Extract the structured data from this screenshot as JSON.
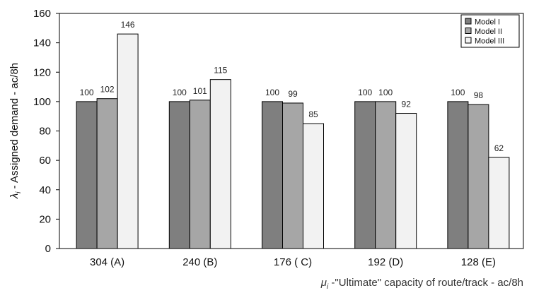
{
  "chart_data": {
    "type": "bar",
    "categories": [
      "304 (A)",
      "240 (B)",
      "176 ( C)",
      "192 (D)",
      "128 (E)"
    ],
    "series": [
      {
        "name": "Model I",
        "values": [
          100,
          100,
          100,
          100,
          100
        ],
        "color": "#7f7f7f"
      },
      {
        "name": "Model II",
        "values": [
          102,
          101,
          99,
          100,
          98
        ],
        "color": "#a6a6a6"
      },
      {
        "name": "Model III",
        "values": [
          146,
          115,
          85,
          92,
          62
        ],
        "color": "#f2f2f2"
      }
    ],
    "ylim": [
      0,
      160
    ],
    "yticks": [
      0,
      20,
      40,
      60,
      80,
      100,
      120,
      140,
      160
    ],
    "ylabel": {
      "symbol": "λ",
      "sub": "i",
      "text": " - Assigned demand - ac/8h"
    },
    "xlabel": {
      "symbol": "μ",
      "sub": "i",
      "text": " -\"Ultimate\"  capacity of route/track - ac/8h"
    },
    "legend_position": "top-right",
    "grid": false
  }
}
